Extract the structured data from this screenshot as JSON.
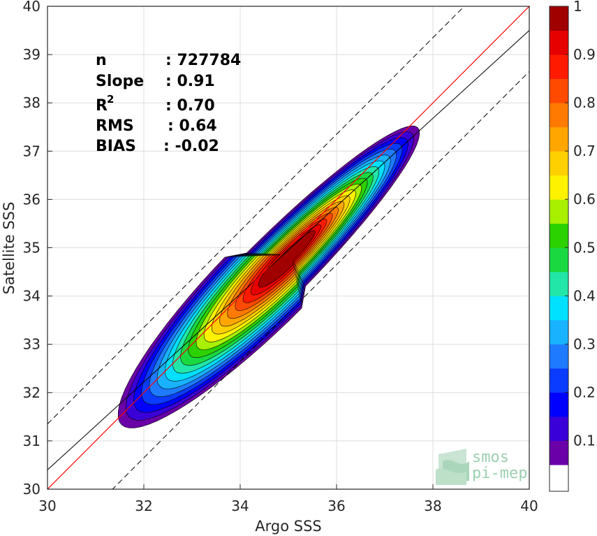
{
  "chart_data": {
    "type": "contour-density",
    "xlabel": "Argo SSS",
    "ylabel": "Satellite SSS",
    "xlim": [
      30,
      40
    ],
    "ylim": [
      30,
      40
    ],
    "xticks": [
      30,
      32,
      34,
      36,
      38,
      40
    ],
    "yticks": [
      30,
      31,
      32,
      33,
      34,
      35,
      36,
      37,
      38,
      39,
      40
    ],
    "grid": true,
    "stats": [
      {
        "label": "n",
        "value": ": 727784"
      },
      {
        "label": "Slope",
        "value": ": 0.91"
      },
      {
        "label": "R",
        "sup": "2",
        "value": ": 0.70"
      },
      {
        "label": "RMS",
        "value": ": 0.64"
      },
      {
        "label": "BIAS",
        "value": ": -0.02"
      }
    ],
    "lines": {
      "identity": {
        "slope": 1,
        "intercept": 0,
        "color": "#ff0000"
      },
      "fit": {
        "slope": 0.91,
        "intercept": 3.1,
        "color": "#000000"
      },
      "bounds": [
        {
          "slope": 1,
          "intercept": 1.35,
          "style": "dashed"
        },
        {
          "slope": 1,
          "intercept": -1.35,
          "style": "dashed"
        }
      ]
    },
    "density_center": [
      35.0,
      34.8
    ],
    "density_peak": 1,
    "colorbar": {
      "ticks": [
        0.1,
        0.2,
        0.3,
        0.4,
        0.5,
        0.6,
        0.7,
        0.8,
        0.9,
        1
      ],
      "colors": [
        "#6a00a8",
        "#3a00d8",
        "#0000ff",
        "#0a3cff",
        "#1e7bff",
        "#19b2ff",
        "#00e0ff",
        "#22e6a8",
        "#1ad940",
        "#2cd100",
        "#a8f000",
        "#fff200",
        "#ffd000",
        "#ffa600",
        "#ff7a00",
        "#ff4a00",
        "#ff1a00",
        "#e60000",
        "#a00000"
      ]
    },
    "logo": {
      "line1": "smos",
      "line2": "pi-mep"
    }
  }
}
